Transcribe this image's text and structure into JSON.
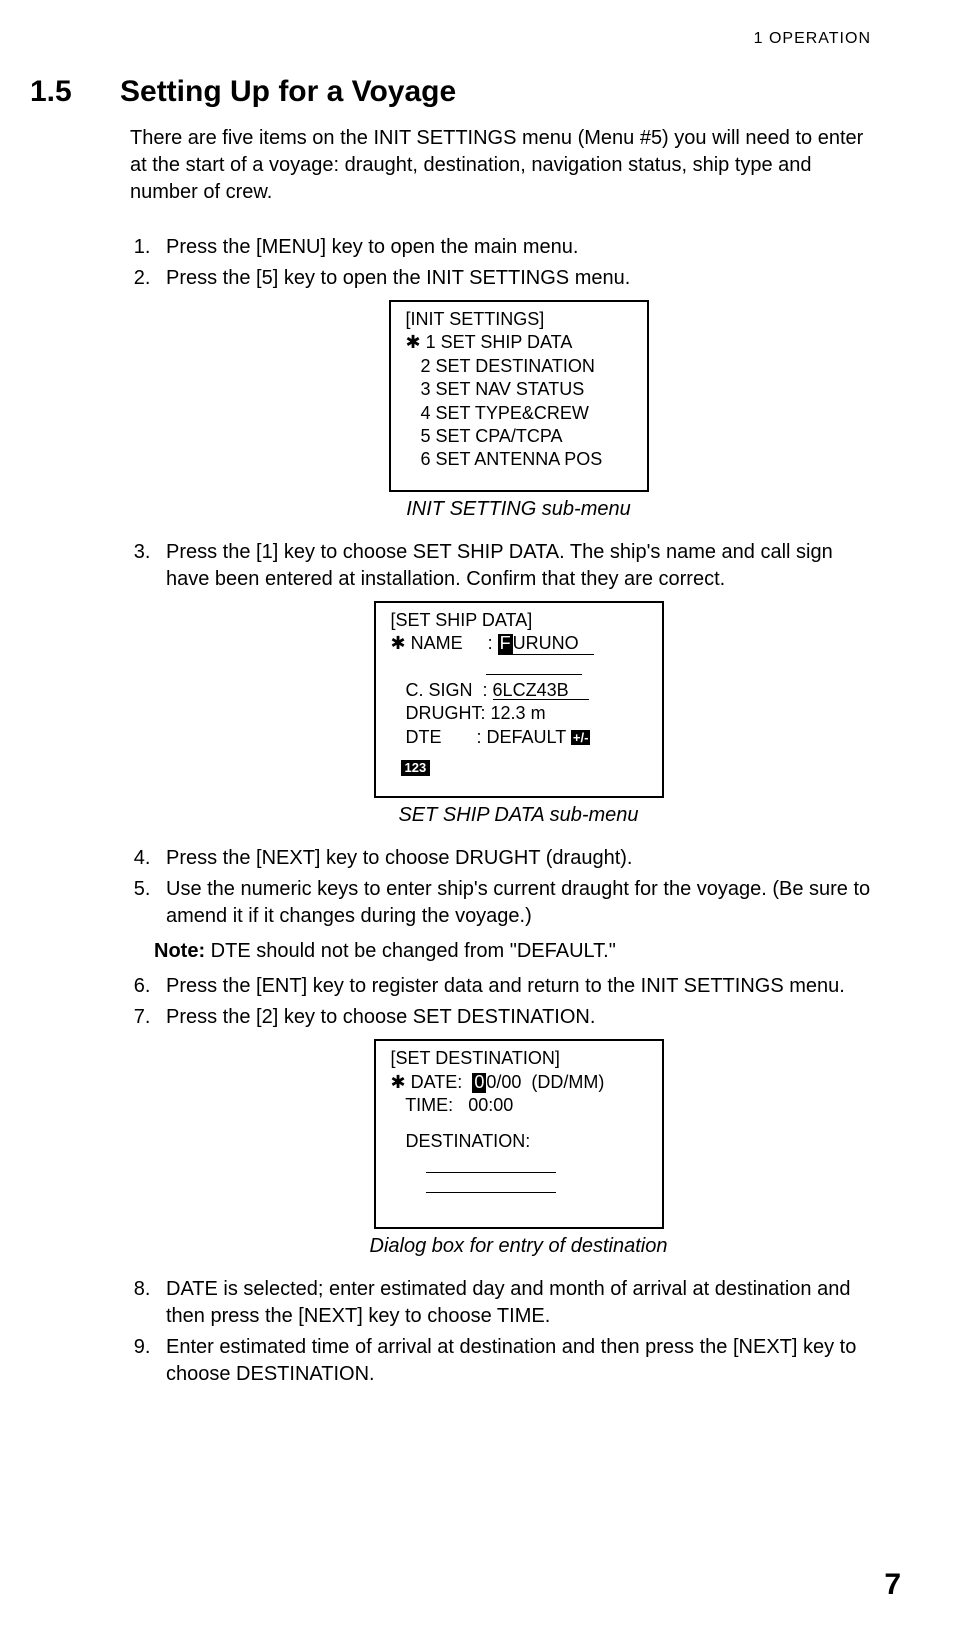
{
  "header": {
    "chapter_label": "1    OPERATION"
  },
  "section": {
    "number": "1.5",
    "title": "Setting Up for a Voyage",
    "intro": "There are five items on the INIT SETTINGS menu (Menu #5) you will need to enter at the start of a voyage: draught, destination, navigation status, ship type and number of crew."
  },
  "steps": {
    "s1": "Press the [MENU] key to open the main menu.",
    "s2": "Press the [5] key to open the INIT SETTINGS menu.",
    "s3": "Press the [1] key to choose SET SHIP DATA. The ship's name and call sign have been entered at installation. Confirm that they are correct.",
    "s4": "Press the [NEXT] key to choose DRUGHT (draught).",
    "s5": "Use the numeric keys to enter ship's current draught for the voyage. (Be sure to amend it if it changes during the voyage.)",
    "s6": "Press the [ENT] key to register data and return to the INIT SETTINGS menu.",
    "s7": "Press the [2] key to choose SET DESTINATION.",
    "s8": "DATE is selected; enter estimated day and month of arrival at destination and then press the [NEXT] key to choose TIME.",
    "s9": "Enter estimated time of arrival at destination and then press the [NEXT] key to choose DESTINATION."
  },
  "note": {
    "label": "Note:",
    "text": " DTE should not be changed from \"DEFAULT.\""
  },
  "menu1": {
    "title": "[INIT SETTINGS]",
    "items": {
      "i1": "1 SET SHIP DATA",
      "i2": "2 SET DESTINATION",
      "i3": "3 SET NAV STATUS",
      "i4": "4 SET TYPE&CREW",
      "i5": "5 SET CPA/TCPA",
      "i6": "6 SET ANTENNA POS"
    },
    "caption": "INIT SETTING sub-menu"
  },
  "menu2": {
    "title": "[SET SHIP DATA]",
    "name_label": "NAME",
    "name_first_char": "F",
    "name_rest": "URUNO",
    "csign_label": "C. SIGN",
    "csign_value": "6LCZ43B",
    "drught_label": "DRUGHT",
    "drught_value": "12.3 m",
    "dte_label": "DTE",
    "dte_value": "DEFAULT",
    "pm_icon": "+/-",
    "num_icon": "123",
    "caption": "SET SHIP DATA sub-menu"
  },
  "menu3": {
    "title": "[SET DESTINATION]",
    "date_label": "DATE:",
    "date_first": "0",
    "date_rest": "0/00  (DD/MM)",
    "time_label": "TIME:",
    "time_value": "00:00",
    "dest_label": "DESTINATION:",
    "caption": "Dialog box for entry of destination"
  },
  "page_number": "7"
}
